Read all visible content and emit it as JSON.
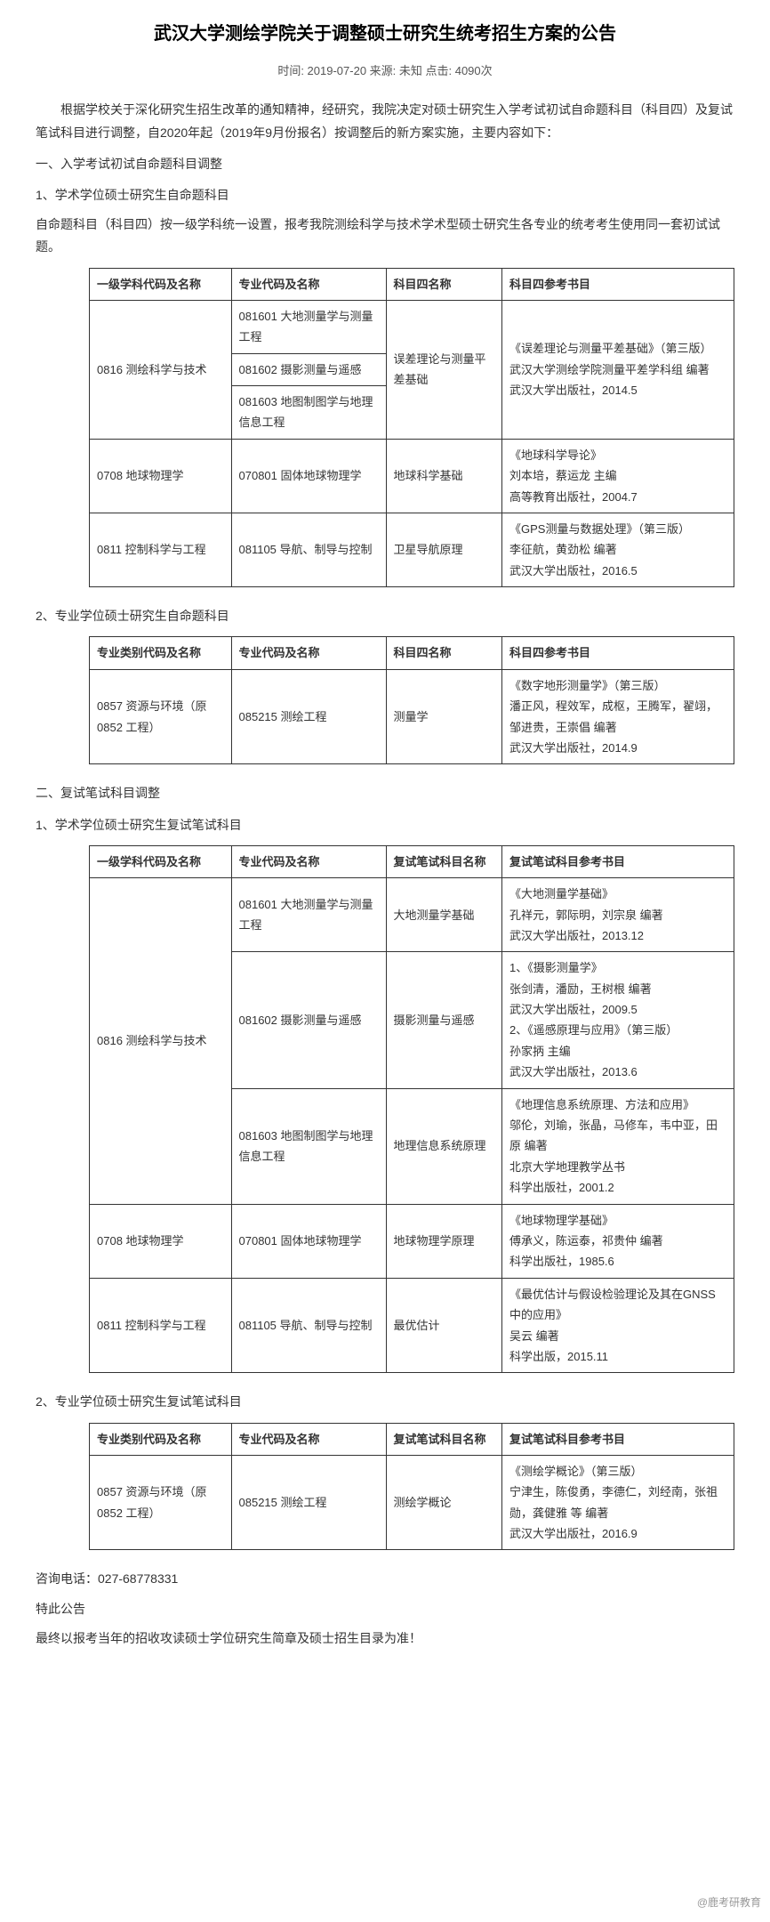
{
  "title": "武汉大学测绘学院关于调整硕士研究生统考招生方案的公告",
  "meta": "时间: 2019-07-20 来源: 未知 点击: 4090次",
  "intro": "根据学校关于深化研究生招生改革的通知精神，经研究，我院决定对硕士研究生入学考试初试自命题科目（科目四）及复试笔试科目进行调整，自2020年起（2019年9月份报名）按调整后的新方案实施，主要内容如下：",
  "sec1": "一、入学考试初试自命题科目调整",
  "sec1_1": "1、学术学位硕士研究生自命题科目",
  "sec1_1_note": "自命题科目（科目四）按一级学科统一设置，报考我院测绘科学与技术学术型硕士研究生各专业的统考考生使用同一套初试试题。",
  "t1": {
    "h1": "一级学科代码及名称",
    "h2": "专业代码及名称",
    "h3": "科目四名称",
    "h4": "科目四参考书目",
    "r1c1": "0816 测绘科学与技术",
    "r1c2a": "081601 大地测量学与测量工程",
    "r1c2b": "081602 摄影测量与遥感",
    "r1c2c": "081603 地图制图学与地理信息工程",
    "r1c3": "误差理论与测量平差基础",
    "r1c4": "《误差理论与测量平差基础》（第三版）\n武汉大学测绘学院测量平差学科组 编著\n武汉大学出版社，2014.5",
    "r2c1": "0708 地球物理学",
    "r2c2": "070801 固体地球物理学",
    "r2c3": "地球科学基础",
    "r2c4": "《地球科学导论》\n刘本培，蔡运龙 主编\n高等教育出版社，2004.7",
    "r3c1": "0811 控制科学与工程",
    "r3c2": "081105 导航、制导与控制",
    "r3c3": "卫星导航原理",
    "r3c4": "《GPS测量与数据处理》（第三版）\n李征航，黄劲松 编著\n武汉大学出版社，2016.5"
  },
  "sec1_2": "2、专业学位硕士研究生自命题科目",
  "t2": {
    "h1": "专业类别代码及名称",
    "h2": "专业代码及名称",
    "h3": "科目四名称",
    "h4": "科目四参考书目",
    "r1c1": "0857 资源与环境（原0852 工程）",
    "r1c2": "085215 测绘工程",
    "r1c3": "测量学",
    "r1c4": "《数字地形测量学》（第三版）\n潘正风，程效军，成枢，王腾军，翟翊，邹进贵，王崇倡 编著\n武汉大学出版社，2014.9"
  },
  "sec2": "二、复试笔试科目调整",
  "sec2_1": "1、学术学位硕士研究生复试笔试科目",
  "t3": {
    "h1": "一级学科代码及名称",
    "h2": "专业代码及名称",
    "h3": "复试笔试科目名称",
    "h4": "复试笔试科目参考书目",
    "r1c1": "0816 测绘科学与技术",
    "r1c2": "081601 大地测量学与测量工程",
    "r1c3": "大地测量学基础",
    "r1c4": "《大地测量学基础》\n孔祥元，郭际明，刘宗泉 编著\n武汉大学出版社，2013.12",
    "r2c2": "081602 摄影测量与遥感",
    "r2c3": "摄影测量与遥感",
    "r2c4": "1、《摄影测量学》\n张剑清，潘励，王树根 编著\n武汉大学出版社，2009.5\n2、《遥感原理与应用》（第三版）\n孙家抦 主编\n武汉大学出版社，2013.6",
    "r3c2": "081603 地图制图学与地理信息工程",
    "r3c3": "地理信息系统原理",
    "r3c4": "《地理信息系统原理、方法和应用》\n邬伦，刘瑜，张晶，马修车，韦中亚，田原 编著\n北京大学地理教学丛书\n科学出版社，2001.2",
    "r4c1": "0708 地球物理学",
    "r4c2": "070801 固体地球物理学",
    "r4c3": "地球物理学原理",
    "r4c4": "《地球物理学基础》\n傅承义，陈运泰，祁贵仲 编著\n科学出版社，1985.6",
    "r5c1": "0811 控制科学与工程",
    "r5c2": "081105 导航、制导与控制",
    "r5c3": "最优估计",
    "r5c4": "《最优估计与假设检验理论及其在GNSS中的应用》\n吴云 编著\n科学出版，2015.11"
  },
  "sec2_2": "2、专业学位硕士研究生复试笔试科目",
  "t4": {
    "h1": "专业类别代码及名称",
    "h2": "专业代码及名称",
    "h3": "复试笔试科目名称",
    "h4": "复试笔试科目参考书目",
    "r1c1": "0857 资源与环境（原0852 工程）",
    "r1c2": "085215 测绘工程",
    "r1c3": "测绘学概论",
    "r1c4": "《测绘学概论》（第三版）\n宁津生，陈俊勇，李德仁，刘经南，张祖勋，龚健雅 等 编著\n武汉大学出版社，2016.9"
  },
  "footer": {
    "phone": "咨询电话：027-68778331",
    "notice": "特此公告",
    "note": "最终以报考当年的招收攻读硕士学位研究生简章及硕士招生目录为准！"
  },
  "watermark": "@鹿考研教育"
}
